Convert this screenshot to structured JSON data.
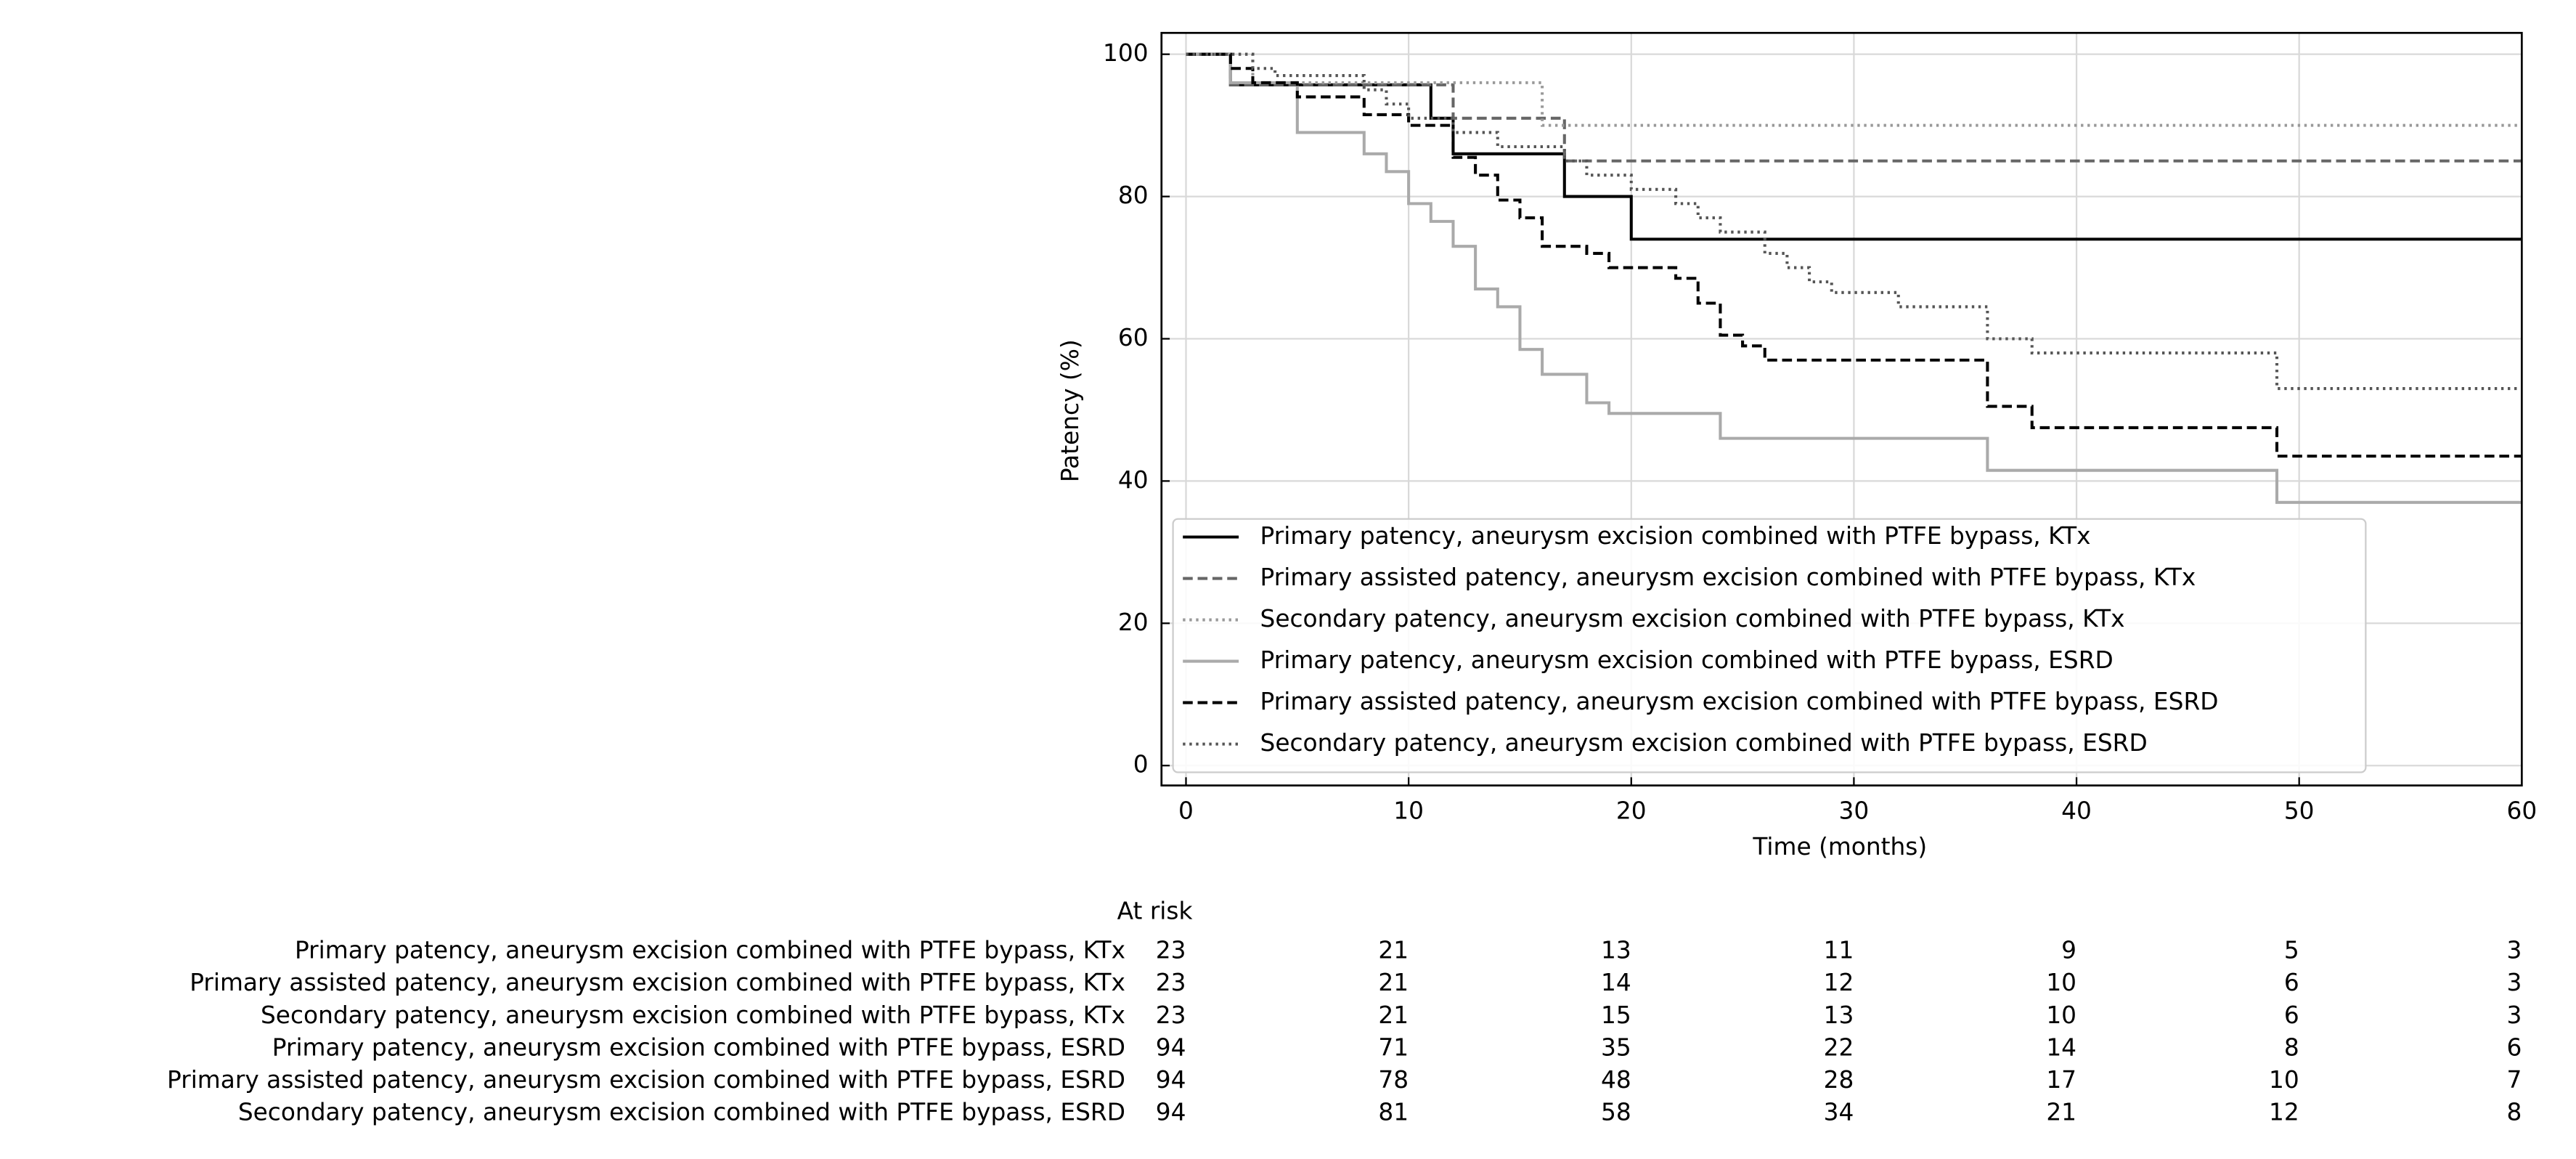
{
  "chart_data": {
    "type": "line",
    "step": true,
    "xlabel": "Time (months)",
    "ylabel": "Patency (%)",
    "xlim": [
      -1.1,
      60
    ],
    "ylim": [
      -2.8,
      103
    ],
    "xticks": [
      0,
      10,
      20,
      30,
      40,
      50,
      60
    ],
    "yticks": [
      0,
      20,
      40,
      60,
      80,
      100
    ],
    "grid": true,
    "legend": "lower left",
    "series": [
      {
        "name": "Primary patency, aneurysm excision combined with PTFE bypass, KTx",
        "color": "#000000",
        "dash": "solid",
        "x": [
          0,
          2,
          11,
          12,
          17,
          20,
          60
        ],
        "values": [
          100,
          95.7,
          91,
          86,
          80,
          74,
          74
        ]
      },
      {
        "name": "Primary assisted patency, aneurysm excision combined with PTFE bypass, KTx",
        "color": "#666666",
        "dash": "dashed",
        "x": [
          0,
          2,
          12,
          17,
          60
        ],
        "values": [
          100,
          95.7,
          91,
          85,
          85
        ]
      },
      {
        "name": "Secondary patency, aneurysm excision combined with PTFE bypass, KTx",
        "color": "#999999",
        "dash": "dotted",
        "x": [
          0,
          3,
          16,
          60
        ],
        "values": [
          100,
          96,
          90,
          90
        ]
      },
      {
        "name": "Primary patency, aneurysm excision combined with PTFE bypass, ESRD",
        "color": "#aaaaaa",
        "dash": "solid",
        "x": [
          0,
          2,
          5,
          8,
          9,
          10,
          11,
          12,
          13,
          14,
          15,
          16,
          18,
          19,
          24,
          36,
          49,
          60
        ],
        "values": [
          100,
          96,
          89,
          86,
          83.5,
          79,
          76.5,
          73,
          67,
          64.5,
          58.5,
          55,
          51,
          49.5,
          46,
          41.5,
          37,
          37
        ]
      },
      {
        "name": "Primary assisted patency, aneurysm excision combined with PTFE bypass, ESRD",
        "color": "#000000",
        "dash": "dashed",
        "x": [
          0,
          2,
          3,
          5,
          8,
          10,
          12,
          13,
          14,
          15,
          16,
          18,
          19,
          22,
          23,
          24,
          25,
          26,
          36,
          38,
          49,
          60
        ],
        "values": [
          100,
          98,
          96,
          94,
          91.5,
          90,
          85.5,
          83,
          79.5,
          77,
          73,
          72,
          70,
          68.5,
          65,
          60.5,
          59,
          57,
          50.5,
          47.5,
          43.5,
          43.5
        ]
      },
      {
        "name": "Secondary patency, aneurysm excision combined with PTFE bypass, ESRD",
        "color": "#555555",
        "dash": "dotted",
        "x": [
          0,
          3,
          4,
          8,
          9,
          10,
          12,
          14,
          17,
          18,
          20,
          22,
          23,
          24,
          26,
          27,
          28,
          29,
          32,
          36,
          38,
          49,
          60
        ],
        "values": [
          100,
          98,
          97,
          95,
          93,
          91,
          89,
          87,
          85,
          83,
          81,
          79,
          77,
          75,
          72,
          70,
          68,
          66.5,
          64.5,
          60,
          58,
          53,
          53
        ]
      }
    ],
    "at_risk": {
      "title": "At risk",
      "rows": [
        [
          23,
          21,
          13,
          11,
          9,
          5,
          3
        ],
        [
          23,
          21,
          14,
          12,
          10,
          6,
          3
        ],
        [
          23,
          21,
          15,
          13,
          10,
          6,
          3
        ],
        [
          94,
          71,
          35,
          22,
          14,
          8,
          6
        ],
        [
          94,
          78,
          48,
          28,
          17,
          10,
          7
        ],
        [
          94,
          81,
          58,
          34,
          21,
          12,
          8
        ]
      ]
    }
  }
}
